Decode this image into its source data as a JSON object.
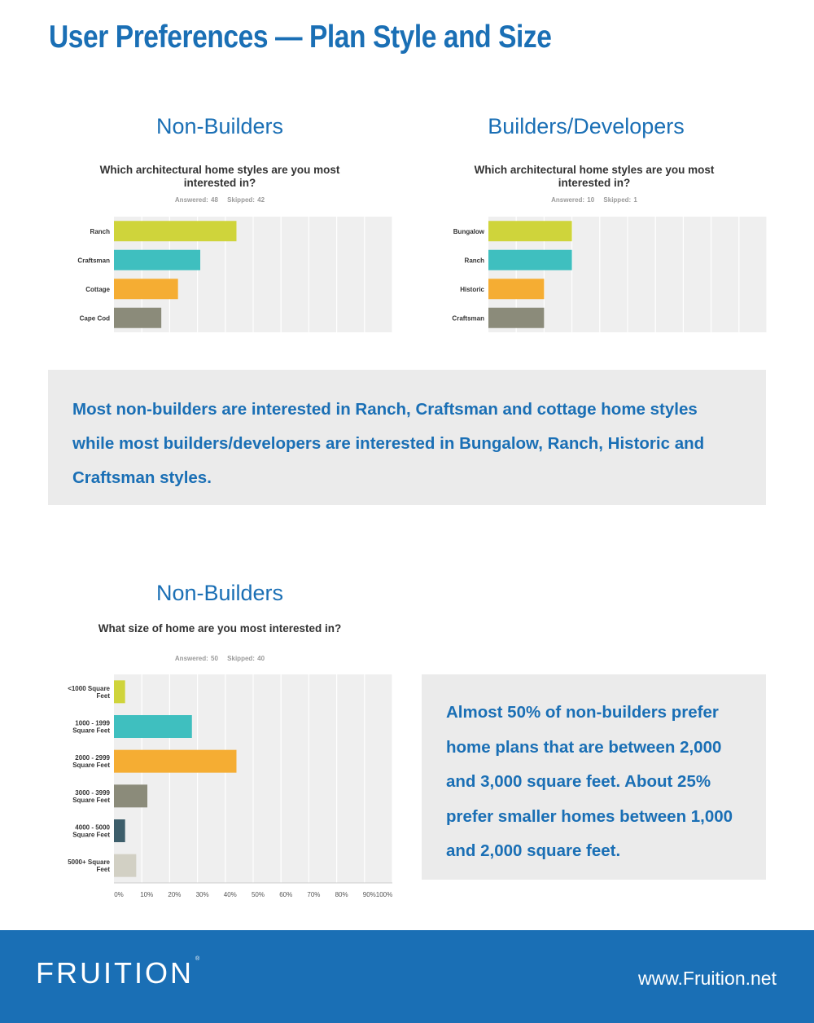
{
  "page": {
    "title": "User Preferences — Plan Style and Size"
  },
  "sections": [
    {
      "heading": "Non-Builders",
      "chart_title": "Which architectural home styles are you most interested in?",
      "answered": "Answered: 48",
      "skipped": "Skipped: 42"
    },
    {
      "heading": "Builders/Developers",
      "chart_title": "Which architectural home styles are you most interested in?",
      "answered": "Answered: 10",
      "skipped": "Skipped: 1"
    },
    {
      "heading": "Non-Builders",
      "chart_title": "What size of home are you most interested in?",
      "answered": "Answered: 50",
      "skipped": "Skipped: 40"
    }
  ],
  "chart_data": [
    {
      "type": "bar",
      "orientation": "horizontal",
      "title": "Which architectural home styles are you most interested in?",
      "categories": [
        "Ranch",
        "Craftsman",
        "Cottage",
        "Cape Cod"
      ],
      "values": [
        44,
        31,
        23,
        17
      ],
      "colors": [
        "#cfd43b",
        "#3fbfbf",
        "#f5ad33",
        "#8b8b7a"
      ],
      "xlim": [
        0,
        100
      ],
      "grid": true
    },
    {
      "type": "bar",
      "orientation": "horizontal",
      "title": "Which architectural home styles are you most interested in?",
      "categories": [
        "Bungalow",
        "Ranch",
        "Historic",
        "Craftsman"
      ],
      "values": [
        30,
        30,
        20,
        20
      ],
      "colors": [
        "#cfd43b",
        "#3fbfbf",
        "#f5ad33",
        "#8b8b7a"
      ],
      "xlim": [
        0,
        100
      ],
      "grid": true
    },
    {
      "type": "bar",
      "orientation": "horizontal",
      "title": "What size of home are you most interested in?",
      "categories": [
        [
          "<1000 Square",
          "Feet"
        ],
        [
          "1000 - 1999",
          "Square Feet"
        ],
        [
          "2000 - 2999",
          "Square Feet"
        ],
        [
          "3000 - 3999",
          "Square Feet"
        ],
        [
          "4000 - 5000",
          "Square Feet"
        ],
        [
          "5000+ Square",
          "Feet"
        ]
      ],
      "values": [
        4,
        28,
        44,
        12,
        4,
        8
      ],
      "colors": [
        "#cfd43b",
        "#3fbfbf",
        "#f5ad33",
        "#8b8b7a",
        "#3d5e6b",
        "#d2d0c4"
      ],
      "xlim": [
        0,
        100
      ],
      "x_ticks": [
        "0%",
        "10%",
        "20%",
        "30%",
        "40%",
        "50%",
        "60%",
        "70%",
        "80%",
        "90%",
        "100%"
      ],
      "grid": true
    }
  ],
  "notes": [
    "Most non-builders are interested in Ranch, Craftsman and cottage home styles while most builders/developers are interested in Bungalow, Ranch, Historic and Craftsman styles.",
    "Almost 50% of non-builders prefer home plans that are between 2,000 and 3,000 square feet. About 25% prefer smaller homes between 1,000 and 2,000 square feet."
  ],
  "footer": {
    "logo": "FRUITION",
    "trademark": "®",
    "url": "www.Fruition.net"
  }
}
